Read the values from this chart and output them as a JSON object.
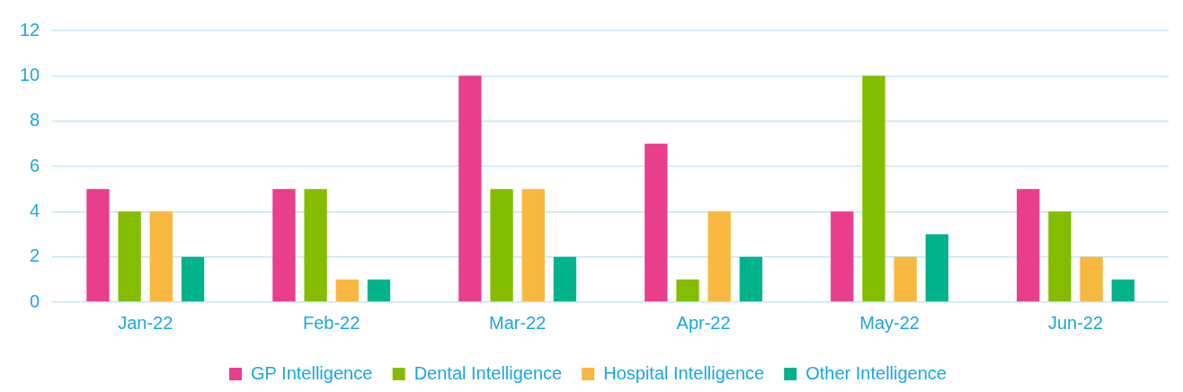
{
  "chart_data": {
    "type": "bar",
    "categories": [
      "Jan-22",
      "Feb-22",
      "Mar-22",
      "Apr-22",
      "May-22",
      "Jun-22"
    ],
    "series": [
      {
        "name": "GP Intelligence",
        "color": "#e83e8c",
        "values": [
          5,
          5,
          10,
          7,
          4,
          5
        ]
      },
      {
        "name": "Dental Intelligence",
        "color": "#84bd00",
        "values": [
          4,
          5,
          5,
          1,
          10,
          4
        ]
      },
      {
        "name": "Hospital Intelligence",
        "color": "#f8b73f",
        "values": [
          4,
          1,
          5,
          4,
          2,
          2
        ]
      },
      {
        "name": "Other Intelligence",
        "color": "#00b38b",
        "values": [
          2,
          1,
          2,
          2,
          3,
          1
        ]
      }
    ],
    "ylim": [
      0,
      12
    ],
    "yticks": [
      0,
      2,
      4,
      6,
      8,
      10,
      12
    ],
    "grid": "y",
    "legend": "bottom"
  }
}
